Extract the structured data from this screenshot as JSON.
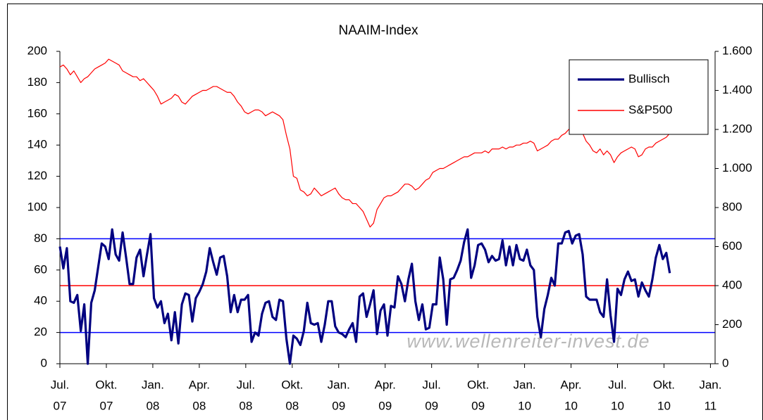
{
  "chart_data": {
    "type": "line",
    "title": "NAAIM-Index",
    "watermark": "www.wellenreiter-invest.de",
    "legend": "upper right",
    "x": [
      0,
      0.225,
      0.45,
      0.675,
      0.9,
      1.125,
      1.35,
      1.575,
      1.8,
      2.025,
      2.25,
      2.475,
      2.7,
      2.925,
      3.15,
      3.375,
      3.6,
      3.825,
      4.05,
      4.275,
      4.5,
      4.725,
      4.95,
      5.175,
      5.4,
      5.625,
      5.85,
      6.075,
      6.3,
      6.525,
      6.75,
      6.975,
      7.2,
      7.425,
      7.65,
      7.875,
      8.1,
      8.325,
      8.55,
      8.775,
      9,
      9.225,
      9.45,
      9.675,
      9.9,
      10.125,
      10.35,
      10.575,
      10.8,
      11.025,
      11.25,
      11.475,
      11.7,
      11.925,
      12.15,
      12.375,
      12.6,
      12.825,
      13.05,
      13.275,
      13.5,
      13.725,
      13.95,
      14.175,
      14.4,
      14.625,
      14.85,
      15.075,
      15.3,
      15.525,
      15.75,
      15.975,
      16.2,
      16.425,
      16.65,
      16.875,
      17.1,
      17.325,
      17.55,
      17.775,
      18,
      18.225,
      18.45,
      18.675,
      18.9,
      19.125,
      19.35,
      19.575,
      19.8,
      20.025,
      20.25,
      20.475,
      20.7,
      20.925,
      21.15,
      21.375,
      21.6,
      21.825,
      22.05,
      22.275,
      22.5,
      22.725,
      22.95,
      23.175,
      23.4,
      23.625,
      23.85,
      24.075,
      24.3,
      24.525,
      24.75,
      24.975,
      25.2,
      25.425,
      25.65,
      25.875,
      26.1,
      26.325,
      26.55,
      26.775,
      27,
      27.225,
      27.45,
      27.675,
      27.9,
      28.125,
      28.35,
      28.575,
      28.8,
      29.025,
      29.25,
      29.475,
      29.7,
      29.925,
      30.15,
      30.375,
      30.6,
      30.825,
      31.05,
      31.275,
      31.5,
      31.725,
      31.95,
      32.175,
      32.4,
      32.625,
      32.85,
      33.075,
      33.3,
      33.525,
      33.75,
      33.975,
      34.2,
      34.425,
      34.65,
      34.875,
      35.1,
      35.325,
      35.55,
      35.775,
      36,
      36.225,
      36.45,
      36.675,
      36.9,
      37.125,
      37.35,
      37.575,
      37.8,
      38.025,
      38.25,
      38.475,
      38.7,
      38.925,
      39.15,
      39.375
    ],
    "xlim": [
      0,
      42.3
    ],
    "xticks": [
      {
        "value": 0,
        "label": [
          "Jul.",
          "07"
        ]
      },
      {
        "value": 3,
        "label": [
          "Okt.",
          "07"
        ]
      },
      {
        "value": 6,
        "label": [
          "Jan.",
          "08"
        ]
      },
      {
        "value": 9,
        "label": [
          "Apr.",
          "08"
        ]
      },
      {
        "value": 12,
        "label": [
          "Jul.",
          "08"
        ]
      },
      {
        "value": 15,
        "label": [
          "Okt.",
          "08"
        ]
      },
      {
        "value": 18,
        "label": [
          "Jan.",
          "09"
        ]
      },
      {
        "value": 21,
        "label": [
          "Apr.",
          "09"
        ]
      },
      {
        "value": 24,
        "label": [
          "Jul.",
          "09"
        ]
      },
      {
        "value": 27,
        "label": [
          "Okt.",
          "09"
        ]
      },
      {
        "value": 30,
        "label": [
          "Jan.",
          "10"
        ]
      },
      {
        "value": 33,
        "label": [
          "Apr.",
          "10"
        ]
      },
      {
        "value": 36,
        "label": [
          "Jul.",
          "10"
        ]
      },
      {
        "value": 39,
        "label": [
          "Okt.",
          "10"
        ]
      },
      {
        "value": 42,
        "label": [
          "Jan.",
          "11"
        ]
      }
    ],
    "ylim": [
      0,
      200
    ],
    "yticks": [
      0,
      20,
      40,
      60,
      80,
      100,
      120,
      140,
      160,
      180,
      200
    ],
    "y2lim": [
      0,
      1600
    ],
    "y2ticks": [
      0,
      200,
      400,
      600,
      800,
      {
        "value": 1000,
        "label": "1.000"
      },
      {
        "value": 1200,
        "label": "1.200"
      },
      {
        "value": 1400,
        "label": "1.400"
      },
      {
        "value": 1600,
        "label": "1.600"
      }
    ],
    "reference_lines": [
      {
        "value": 80,
        "color": "#0000ff"
      },
      {
        "value": 50,
        "color": "#ff0000"
      },
      {
        "value": 20,
        "color": "#0000ff"
      }
    ],
    "series": [
      {
        "name": "Bullisch",
        "color": "#000080",
        "axis": "y",
        "values": [
          75,
          61,
          74,
          40,
          39,
          44,
          21,
          38,
          0,
          39,
          47,
          62,
          77,
          75,
          67,
          86,
          70,
          66,
          84,
          68,
          51,
          51,
          68,
          73,
          56,
          70,
          83,
          42,
          36,
          40,
          26,
          32,
          15,
          33,
          13,
          38,
          45,
          44,
          27,
          42,
          46,
          51,
          59,
          74,
          65,
          57,
          68,
          69,
          56,
          33,
          44,
          33,
          41,
          41,
          44,
          14,
          20,
          18,
          32,
          39,
          40,
          30,
          28,
          41,
          40,
          16,
          0,
          18,
          16,
          12,
          21,
          39,
          26,
          25,
          26,
          14,
          25,
          40,
          40,
          24,
          20,
          19,
          17,
          22,
          26,
          14,
          43,
          45,
          30,
          38,
          47,
          19,
          34,
          38,
          18,
          37,
          36,
          56,
          51,
          40,
          54,
          64,
          40,
          28,
          38,
          22,
          23,
          38,
          38,
          68,
          54,
          25,
          54,
          55,
          60,
          66,
          78,
          86,
          55,
          63,
          76,
          77,
          73,
          65,
          69,
          66,
          67,
          79,
          63,
          75,
          63,
          76,
          67,
          66,
          73,
          63,
          60,
          30,
          17,
          35,
          44,
          55,
          50,
          77,
          77,
          84,
          85,
          77,
          82,
          83,
          70,
          43,
          41,
          41,
          41,
          33,
          30,
          54,
          31,
          14,
          48,
          44,
          54,
          59,
          53,
          54,
          43,
          52,
          47,
          43,
          54,
          68,
          76,
          67,
          71,
          58
        ]
      },
      {
        "name": "S&P500",
        "color": "#ff0000",
        "axis": "y2",
        "values": [
          1520,
          1530,
          1510,
          1480,
          1500,
          1470,
          1440,
          1460,
          1470,
          1490,
          1510,
          1520,
          1530,
          1540,
          1560,
          1550,
          1540,
          1530,
          1500,
          1490,
          1480,
          1470,
          1470,
          1450,
          1460,
          1440,
          1420,
          1400,
          1370,
          1330,
          1340,
          1350,
          1360,
          1380,
          1370,
          1340,
          1330,
          1350,
          1370,
          1380,
          1390,
          1400,
          1400,
          1410,
          1420,
          1420,
          1410,
          1400,
          1390,
          1390,
          1370,
          1340,
          1320,
          1290,
          1280,
          1290,
          1300,
          1300,
          1290,
          1270,
          1280,
          1290,
          1280,
          1270,
          1250,
          1170,
          1100,
          960,
          950,
          890,
          880,
          860,
          870,
          900,
          880,
          860,
          870,
          880,
          890,
          900,
          870,
          850,
          840,
          840,
          820,
          820,
          800,
          780,
          740,
          700,
          720,
          790,
          820,
          850,
          860,
          860,
          870,
          880,
          900,
          920,
          920,
          910,
          890,
          900,
          920,
          940,
          950,
          980,
          990,
          1000,
          1000,
          1010,
          1020,
          1030,
          1040,
          1050,
          1060,
          1060,
          1070,
          1080,
          1080,
          1080,
          1090,
          1080,
          1100,
          1100,
          1100,
          1110,
          1100,
          1110,
          1110,
          1120,
          1120,
          1130,
          1130,
          1140,
          1130,
          1090,
          1100,
          1110,
          1120,
          1140,
          1150,
          1150,
          1170,
          1180,
          1200,
          1200,
          1210,
          1190,
          1180,
          1140,
          1120,
          1090,
          1080,
          1100,
          1070,
          1090,
          1070,
          1030,
          1060,
          1080,
          1090,
          1100,
          1110,
          1100,
          1060,
          1070,
          1100,
          1110,
          1110,
          1130,
          1140,
          1150,
          1160,
          1180
        ]
      }
    ]
  }
}
